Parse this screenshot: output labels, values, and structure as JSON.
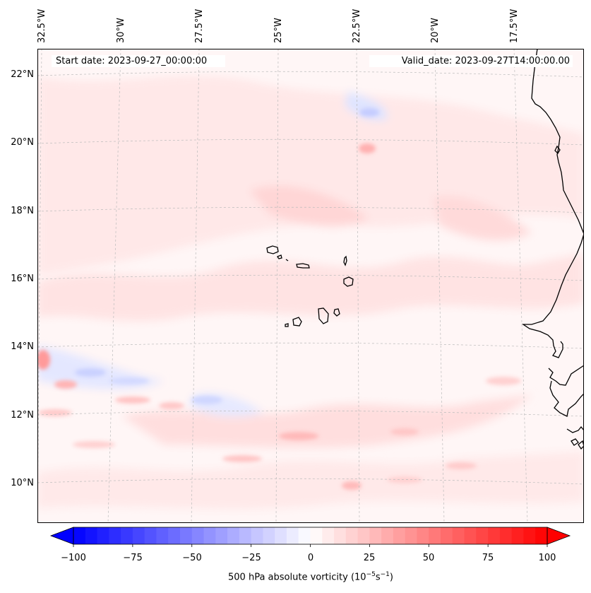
{
  "map": {
    "start_date_text": "Start date: 2023-09-27_00:00:00",
    "valid_date_text": "Valid_date: 2023-09-27T14:00:00.00",
    "longitude_labels": [
      "32.5°W",
      "30°W",
      "27.5°W",
      "25°W",
      "22.5°W",
      "20°W",
      "17.5°W"
    ],
    "latitude_labels": [
      "22°N",
      "20°N",
      "18°N",
      "16°N",
      "14°N",
      "12°N",
      "10°N"
    ],
    "field": "500 hPa absolute vorticity",
    "features": [
      "Cabo Verde islands",
      "West African coastline"
    ],
    "colors": {
      "positive": "#ff0000",
      "negative": "#0000ff",
      "neutral": "#ffffff",
      "coastline": "#000000",
      "gridline": "#bbbbbb"
    }
  },
  "colorbar": {
    "label": "500 hPa absolute vorticity (10",
    "label_exp1": "−5",
    "label_mid": "s",
    "label_exp2": "−1",
    "label_end": ")",
    "min": -100,
    "max": 100,
    "ticks": [
      "−100",
      "−75",
      "−50",
      "−25",
      "0",
      "25",
      "50",
      "75",
      "100"
    ],
    "colormap": "bwr",
    "extend": "both"
  }
}
